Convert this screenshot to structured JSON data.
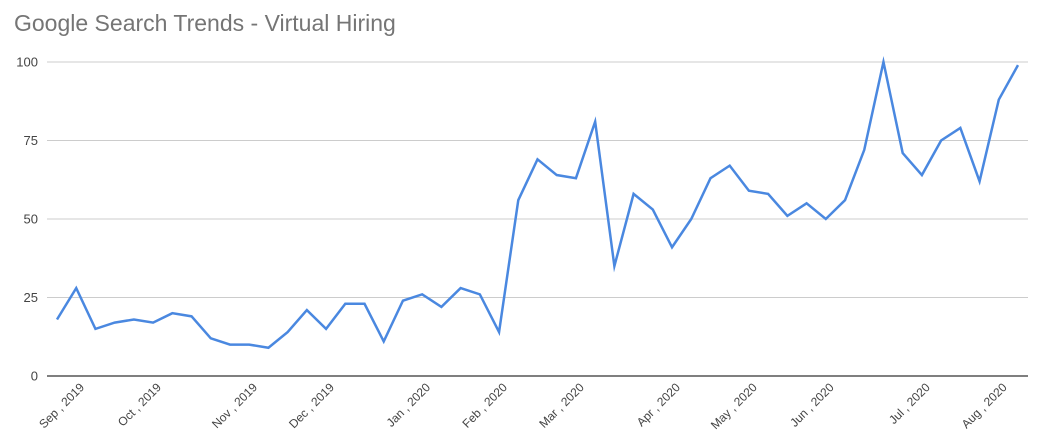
{
  "chart_data": {
    "type": "line",
    "title": "Google Search Trends - Virtual Hiring",
    "xlabel": "",
    "ylabel": "",
    "ylim": [
      0,
      100
    ],
    "y_ticks": [
      0,
      25,
      50,
      75,
      100
    ],
    "grid": true,
    "legend": "none",
    "line_color": "#4a88e0",
    "x_tick_labels": [
      {
        "label": "Sep , 2019",
        "index": 0
      },
      {
        "label": "Oct , 2019",
        "index": 4
      },
      {
        "label": "Nov , 2019",
        "index": 9
      },
      {
        "label": "Dec , 2019",
        "index": 13
      },
      {
        "label": "Jan , 2020",
        "index": 18
      },
      {
        "label": "Feb , 2020",
        "index": 22
      },
      {
        "label": "Mar , 2020",
        "index": 26
      },
      {
        "label": "Apr , 2020",
        "index": 31
      },
      {
        "label": "May , 2020",
        "index": 35
      },
      {
        "label": "Jun , 2020",
        "index": 39
      },
      {
        "label": "Jul , 2020",
        "index": 44
      },
      {
        "label": "Aug , 2020",
        "index": 48
      }
    ],
    "series": [
      {
        "values": [
          18,
          28,
          15,
          17,
          18,
          17,
          20,
          19,
          12,
          10,
          10,
          9,
          14,
          21,
          15,
          23,
          23,
          11,
          24,
          26,
          22,
          28,
          26,
          14,
          56,
          69,
          64,
          63,
          81,
          35,
          58,
          53,
          41,
          50,
          63,
          67,
          59,
          58,
          51,
          55,
          50,
          56,
          72,
          100,
          71,
          64,
          75,
          79,
          62,
          88,
          99
        ]
      }
    ]
  }
}
